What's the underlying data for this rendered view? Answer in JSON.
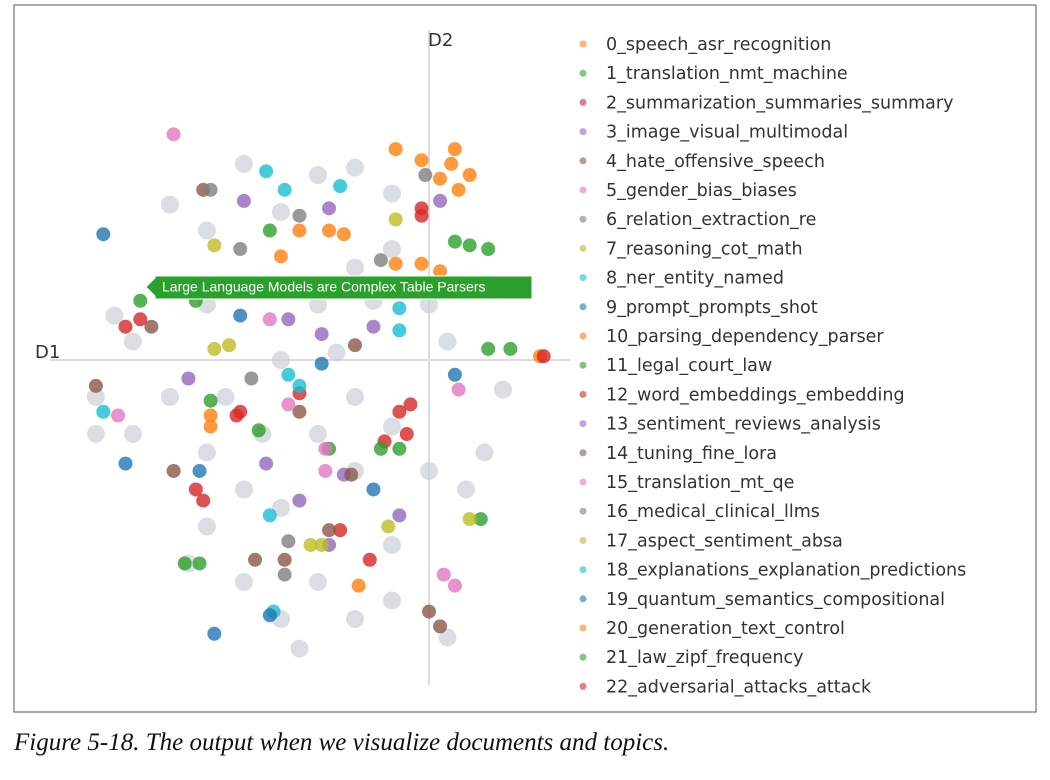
{
  "chart_data": {
    "type": "scatter",
    "xlabel": "D1",
    "ylabel": "D2",
    "caption": "Figure 5-18. The output when we visualize documents and topics.",
    "annotations": [
      {
        "text": "Large Language Models are Complex Table Parsers"
      }
    ],
    "xlim": [
      -10.24,
      3.81
    ],
    "ylim": [
      -8.92,
      8.92
    ],
    "background_points": {
      "color": "#cdd3d8",
      "x": [
        -7,
        -6,
        -8,
        -7,
        -6,
        -5,
        -4,
        -3,
        -2,
        -1,
        0,
        1,
        -1,
        -3,
        -4,
        -5,
        -6,
        -8,
        -9,
        -4,
        -3,
        -2,
        -1,
        0,
        0.5,
        1,
        -5,
        -6,
        -4,
        -2,
        -1,
        -7,
        -3,
        -5,
        -2,
        -1,
        0.5,
        -8.5,
        -9,
        -6.5,
        -2,
        2,
        1.5,
        -3.5,
        -5.5,
        -4.5,
        -2.5,
        -1.5
      ],
      "y": [
        2,
        1.5,
        0.5,
        -1,
        -2.5,
        -3.5,
        -4,
        -2,
        -1,
        -1.8,
        -3,
        -3.5,
        -5,
        -6,
        -7,
        -6,
        -4.5,
        -2,
        -1,
        0,
        1.5,
        2.5,
        3,
        1.5,
        0.5,
        2,
        2,
        3.5,
        4,
        5.2,
        4.5,
        4.2,
        5,
        5.3,
        -3,
        -6.5,
        -7.5,
        1.2,
        -2,
        -5.5,
        -7,
        -0.8,
        -2.5,
        -7.8,
        -1,
        -2,
        0.2,
        1.6
      ]
    },
    "series": [
      {
        "name": "0_speech_asr_recognition",
        "color": "#ff7f0e",
        "x": [
          0.6,
          0.3,
          0.8,
          -0.2,
          -0.9,
          -3.5,
          -2.7,
          -0.2,
          -0.9,
          -5.9,
          -1.9,
          3.0,
          0.7,
          1.1
        ],
        "y": [
          5.3,
          4.9,
          4.6,
          5.4,
          5.7,
          3.5,
          3.5,
          2.6,
          2.6,
          -1.5,
          -6.1,
          0.1,
          5.7,
          5.0
        ]
      },
      {
        "name": "1_translation_nmt_machine",
        "color": "#2ca02c",
        "x": [
          1.1,
          0.7,
          1.6,
          -4.3,
          -4.6,
          -7.8,
          -5.9,
          -6.2,
          -2.7,
          1.4,
          1.6,
          -0.8
        ],
        "y": [
          3.1,
          3.2,
          3.0,
          3.5,
          -1.9,
          1.6,
          -1.1,
          -5.5,
          -2.4,
          -4.3,
          0.3,
          -2.4
        ]
      },
      {
        "name": "2_summarization_summaries_summary",
        "color": "#d62728",
        "x": [
          -7.8,
          -8.2,
          -6.3,
          -6.1,
          -0.8,
          -0.6,
          -5.1,
          -2.4,
          -3.5,
          -1.6,
          -0.2,
          3.1
        ],
        "y": [
          1.1,
          0.9,
          -3.5,
          -3.8,
          -1.4,
          -2.0,
          -1.4,
          -4.6,
          -0.9,
          -5.4,
          4.1,
          0.1
        ]
      },
      {
        "name": "3_image_visual_multimodal",
        "color": "#9467bd",
        "x": [
          -5.0,
          -2.7,
          -6.5,
          -2.9,
          -3.8,
          -0.8,
          -4.4,
          -2.3,
          -1.5,
          -2.7
        ],
        "y": [
          4.3,
          4.1,
          -0.5,
          0.7,
          1.1,
          -4.2,
          -2.8,
          -3.1,
          0.9,
          -5.0
        ]
      },
      {
        "name": "4_hate_offensive_speech",
        "color": "#8c564b",
        "x": [
          -6.1,
          -7.5,
          -9.0,
          -2.0,
          -3.5,
          0.3,
          0.0,
          -4.7,
          -3.9,
          -2.1
        ],
        "y": [
          4.6,
          0.9,
          -0.7,
          0.4,
          -1.4,
          -7.2,
          -6.8,
          -5.4,
          -5.4,
          -3.1
        ]
      },
      {
        "name": "5_gender_bias_biases",
        "color": "#e377c2",
        "x": [
          -8.4,
          -4.3,
          -2.8,
          0.7,
          0.8,
          -3.8,
          -6.9
        ],
        "y": [
          -1.5,
          1.1,
          -3.0,
          -6.1,
          -0.8,
          -1.2,
          6.1
        ]
      },
      {
        "name": "6_relation_extraction_re",
        "color": "#7f7f7f",
        "x": [
          -5.9,
          -3.5,
          -3.9,
          -4.8,
          -1.3,
          -0.1
        ],
        "y": [
          4.6,
          3.9,
          -5.8,
          -0.5,
          2.7,
          5.0
        ]
      },
      {
        "name": "7_reasoning_cot_math",
        "color": "#bcbd22",
        "x": [
          -5.4,
          -5.8,
          -5.8,
          -0.9,
          -2.9,
          -1.1
        ],
        "y": [
          0.4,
          0.3,
          3.1,
          3.8,
          -5.0,
          -4.5
        ]
      },
      {
        "name": "8_ner_entity_named",
        "color": "#17becf",
        "x": [
          -4.4,
          -3.9,
          -2.4,
          -3.5,
          -3.8,
          -0.8,
          -4.2,
          -8.8
        ],
        "y": [
          5.1,
          4.6,
          4.7,
          -0.7,
          -0.4,
          0.8,
          -6.8,
          -1.4
        ]
      },
      {
        "name": "9_prompt_prompts_shot",
        "color": "#1f77b4",
        "x": [
          -5.1,
          -2.9,
          -8.2,
          -4.3,
          -8.8,
          -1.5,
          -5.8
        ],
        "y": [
          1.2,
          -0.1,
          -2.8,
          -6.9,
          3.4,
          -3.5,
          -7.4
        ]
      },
      {
        "name": "10_parsing_dependency_parser",
        "color": "#ff7f0e",
        "x": [
          -4.0,
          0.3
        ],
        "y": [
          2.8,
          2.4
        ]
      },
      {
        "name": "11_legal_court_law",
        "color": "#2ca02c",
        "x": [
          2.2,
          -6.3
        ],
        "y": [
          0.3,
          1.6
        ]
      },
      {
        "name": "12_word_embeddings_embedding",
        "color": "#d62728",
        "x": [
          -0.5,
          -1.2
        ],
        "y": [
          -1.2,
          -2.2
        ]
      },
      {
        "name": "13_sentiment_reviews_analysis",
        "color": "#9467bd",
        "x": [
          0.3,
          -3.5
        ],
        "y": [
          4.3,
          -3.8
        ]
      },
      {
        "name": "14_tuning_fine_lora",
        "color": "#8c564b",
        "x": [
          -2.7,
          -6.9
        ],
        "y": [
          -4.6,
          -3.0
        ]
      },
      {
        "name": "15_translation_mt_qe",
        "color": "#e377c2",
        "x": [
          -2.8,
          0.4
        ],
        "y": [
          -2.4,
          -5.8
        ]
      },
      {
        "name": "16_medical_clinical_llms",
        "color": "#7f7f7f",
        "x": [
          -5.1,
          -3.8
        ],
        "y": [
          3.0,
          -4.9
        ]
      },
      {
        "name": "17_aspect_sentiment_absa",
        "color": "#bcbd22",
        "x": [
          -3.2,
          1.1
        ],
        "y": [
          -5.0,
          -4.3
        ]
      },
      {
        "name": "18_explanations_explanation_predictions",
        "color": "#17becf",
        "x": [
          -4.3,
          -0.8
        ],
        "y": [
          -4.2,
          1.4
        ]
      },
      {
        "name": "19_quantum_semantics_compositional",
        "color": "#1f77b4",
        "x": [
          -6.2,
          0.7
        ],
        "y": [
          -3.0,
          -0.4
        ]
      },
      {
        "name": "20_generation_text_control",
        "color": "#ff7f0e",
        "x": [
          -2.3,
          -5.9
        ],
        "y": [
          3.4,
          -1.8
        ]
      },
      {
        "name": "21_law_zipf_frequency",
        "color": "#2ca02c",
        "x": [
          -6.6,
          -1.3
        ],
        "y": [
          -5.5,
          -2.4
        ]
      },
      {
        "name": "22_adversarial_attacks_attack",
        "color": "#d62728",
        "x": [
          -5.2,
          -0.2
        ],
        "y": [
          -1.5,
          3.9
        ]
      }
    ]
  }
}
